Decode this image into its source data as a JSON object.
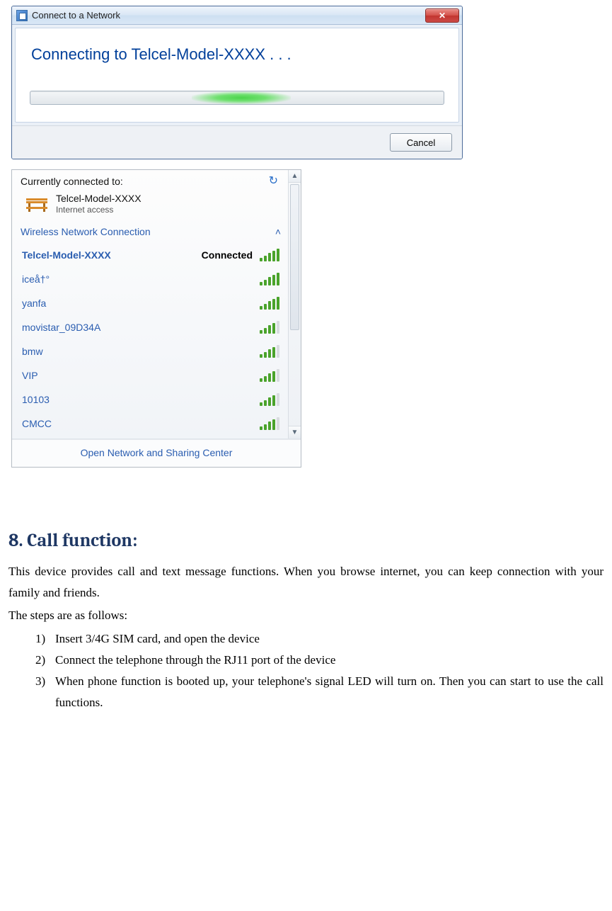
{
  "dialog": {
    "title": "Connect to a Network",
    "message": "Connecting to Telcel-Model-XXXX . . .",
    "cancel": "Cancel"
  },
  "flyout": {
    "headerLabel": "Currently connected to:",
    "connectedName": "Telcel-Model-XXXX",
    "connectedSub": "Internet access",
    "sectionLabel": "Wireless Network Connection",
    "connectedStatus": "Connected",
    "footer": "Open Network and Sharing Center",
    "networks": [
      {
        "ssid": "Telcel-Model-XXXX",
        "bars": 5,
        "selected": true,
        "status": "Connected"
      },
      {
        "ssid": "iceå†°",
        "bars": 5
      },
      {
        "ssid": "yanfa",
        "bars": 5
      },
      {
        "ssid": "movistar_09D34A",
        "bars": 4
      },
      {
        "ssid": "bmw",
        "bars": 4
      },
      {
        "ssid": "VIP",
        "bars": 4
      },
      {
        "ssid": "10103",
        "bars": 4
      },
      {
        "ssid": "CMCC",
        "bars": 4
      }
    ]
  },
  "doc": {
    "heading": "8. Call function:",
    "para1": "This device provides call and text message functions. When you browse internet, you can keep connection with your family and friends.",
    "para2": "The steps are as follows:",
    "steps": [
      "Insert 3/4G SIM card, and open the device",
      "Connect the telephone through the RJ11 port of the device",
      "When phone function is booted up, your telephone's signal LED will turn on. Then you can start to use the call functions."
    ]
  }
}
